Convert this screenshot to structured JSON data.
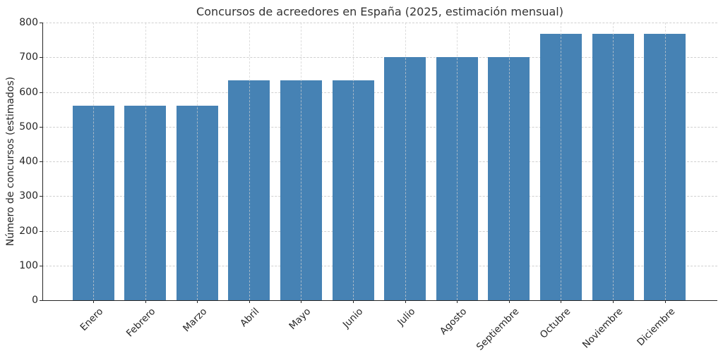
{
  "chart_data": {
    "type": "bar",
    "title": "Concursos de acreedores en España (2025, estimación mensual)",
    "xlabel": "",
    "ylabel": "Número de concursos (estimados)",
    "categories": [
      "Enero",
      "Febrero",
      "Marzo",
      "Abril",
      "Mayo",
      "Junio",
      "Julio",
      "Agosto",
      "Septiembre",
      "Octubre",
      "Noviembre",
      "Diciembre"
    ],
    "values": [
      560,
      560,
      560,
      633,
      633,
      633,
      700,
      700,
      700,
      767,
      767,
      767
    ],
    "ylim": [
      0,
      800
    ],
    "yticks": [
      0,
      100,
      200,
      300,
      400,
      500,
      600,
      700,
      800
    ],
    "grid": true,
    "legend": null,
    "bar_color": "#4682b4",
    "x_tick_rotation": 45
  }
}
